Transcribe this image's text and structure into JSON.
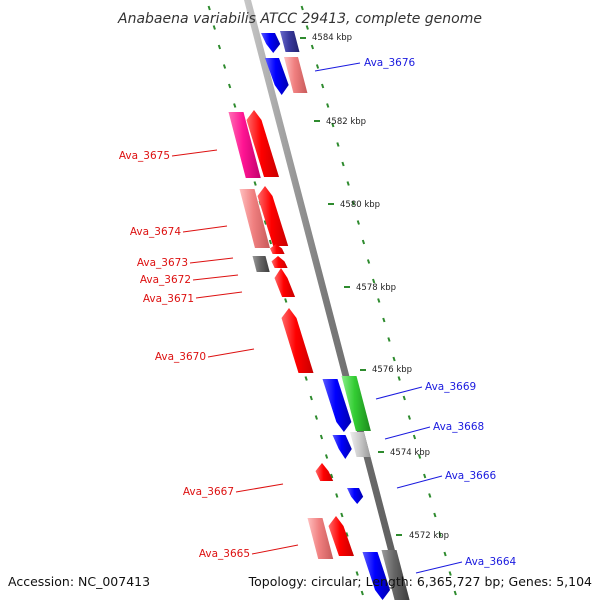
{
  "title": "Anabaena variabilis ATCC 29413, complete genome",
  "accession": "Accession: NC_007413",
  "summary": "Topology: circular; Length: 6,365,727 bp; Genes: 5,104",
  "colors": {
    "backbone": "#8c8c8c",
    "tick": "#2e8b2e",
    "reverse_label": "#dd1111",
    "forward_label": "#1a1adf",
    "red_gene": "#ff0000",
    "pink_gene": "#f08080",
    "magenta_gene": "#ff1493",
    "blue_gene": "#0000ff",
    "dark_blue_gene": "#3333aa",
    "green_gene": "#33cc33",
    "gray_gene": "#666666",
    "light_gray_gene": "#cccccc"
  },
  "kbp_labels": [
    "4584 kbp",
    "4582 kbp",
    "4580 kbp",
    "4578 kbp",
    "4576 kbp",
    "4574 kbp",
    "4572 kbp"
  ],
  "gene_labels": [
    {
      "text": "Ava_3676",
      "strand": "forward"
    },
    {
      "text": "Ava_3675",
      "strand": "reverse"
    },
    {
      "text": "Ava_3674",
      "strand": "reverse"
    },
    {
      "text": "Ava_3673",
      "strand": "reverse"
    },
    {
      "text": "Ava_3672",
      "strand": "reverse"
    },
    {
      "text": "Ava_3671",
      "strand": "reverse"
    },
    {
      "text": "Ava_3670",
      "strand": "reverse"
    },
    {
      "text": "Ava_3669",
      "strand": "forward"
    },
    {
      "text": "Ava_3668",
      "strand": "forward"
    },
    {
      "text": "Ava_3666",
      "strand": "forward"
    },
    {
      "text": "Ava_3667",
      "strand": "reverse"
    },
    {
      "text": "Ava_3665",
      "strand": "reverse"
    },
    {
      "text": "Ava_3664",
      "strand": "forward"
    }
  ]
}
